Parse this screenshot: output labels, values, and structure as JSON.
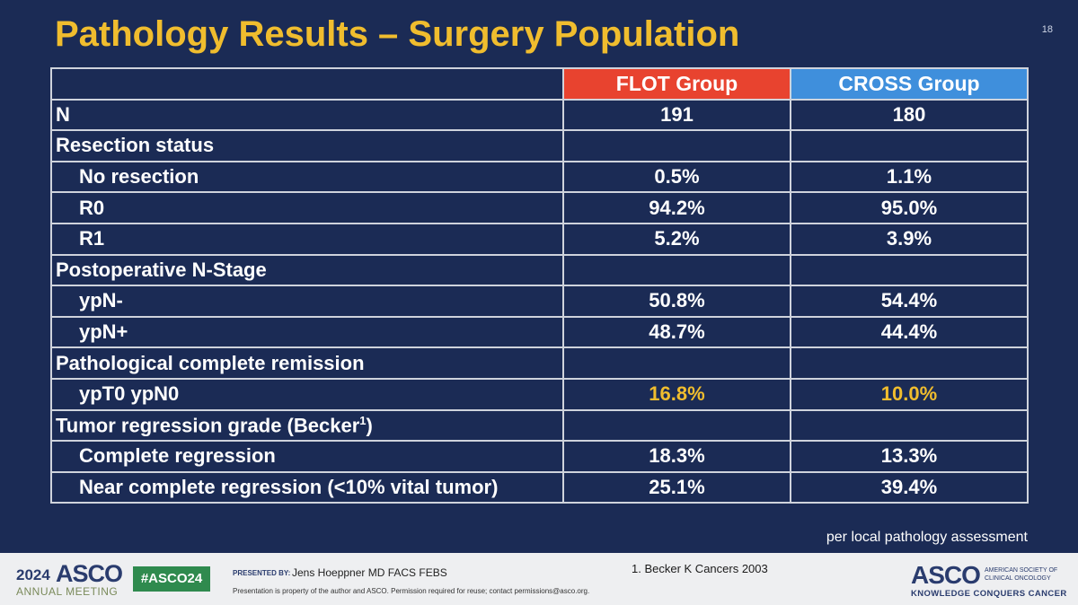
{
  "slide": {
    "title": "Pathology Results – Surgery Population",
    "slide_number": "18",
    "table": {
      "header": {
        "corner": "",
        "flot": "FLOT Group",
        "cross": "CROSS Group"
      },
      "rows": [
        {
          "label": "N",
          "flot": "191",
          "cross": "180"
        },
        {
          "label": "Resection status",
          "flot": "",
          "cross": ""
        },
        {
          "label": "No resection",
          "flot": "0.5%",
          "cross": "1.1%"
        },
        {
          "label": "R0",
          "flot": "94.2%",
          "cross": "95.0%"
        },
        {
          "label": "R1",
          "flot": "5.2%",
          "cross": "3.9%"
        },
        {
          "label": "Postoperative N-Stage",
          "flot": "",
          "cross": ""
        },
        {
          "label": "ypN-",
          "flot": "50.8%",
          "cross": "54.4%"
        },
        {
          "label": "ypN+",
          "flot": "48.7%",
          "cross": "44.4%"
        },
        {
          "label": "Pathological complete remission",
          "flot": "",
          "cross": ""
        },
        {
          "label": "ypT0 ypN0",
          "flot": "16.8%",
          "cross": "10.0%"
        },
        {
          "label": "Tumor regression grade (Becker",
          "label_sup": "1",
          "label_end": ")",
          "flot": "",
          "cross": ""
        },
        {
          "label": "Complete regression",
          "flot": "18.3%",
          "cross": "13.3%"
        },
        {
          "label": "Near complete regression (<10% vital tumor)",
          "flot": "25.1%",
          "cross": "39.4%"
        }
      ]
    },
    "note": "per local pathology assessment"
  },
  "footer": {
    "logo_year": "2024",
    "logo_asco": "ASCO",
    "logo_annual": "ANNUAL MEETING",
    "hashtag": "#ASCO24",
    "presented_by_label": "PRESENTED BY:",
    "presenter": "Jens Hoeppner MD FACS FEBS",
    "permission": "Presentation is property of the author and ASCO. Permission required for reuse; contact permissions@asco.org.",
    "reference": "1. Becker K Cancers 2003",
    "asco_logo": "ASCO",
    "society_line1": "AMERICAN SOCIETY OF",
    "society_line2": "CLINICAL ONCOLOGY",
    "tagline": "KNOWLEDGE CONQUERS CANCER"
  },
  "colors": {
    "background": "#1b2b55",
    "title": "#f0bd2e",
    "flot_header": "#e8432f",
    "cross_header": "#3f8fdc",
    "highlight_value": "#f0bd2e"
  }
}
